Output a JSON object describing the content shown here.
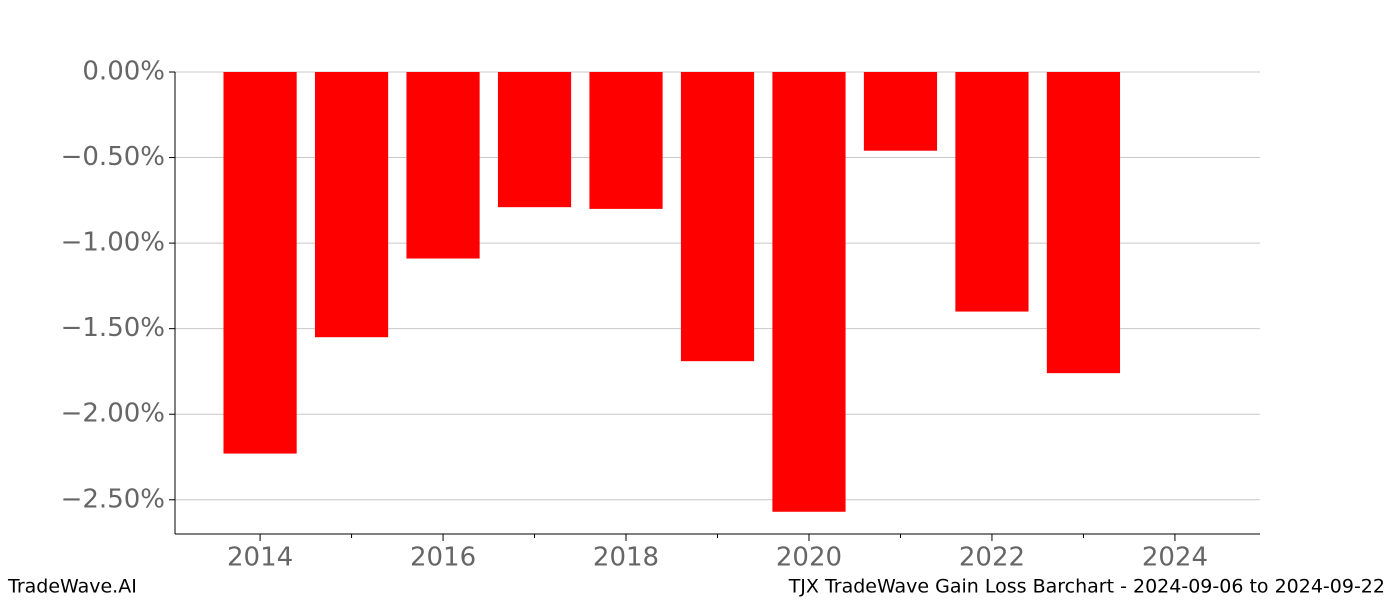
{
  "chart_data": {
    "type": "bar",
    "title": "TJX TradeWave Gain Loss Barchart - 2024-09-06 to 2024-09-22",
    "watermark": "TradeWave.AI",
    "x": [
      2014,
      2015,
      2016,
      2017,
      2018,
      2019,
      2020,
      2021,
      2022,
      2023
    ],
    "values": [
      -2.23,
      -1.55,
      -1.09,
      -0.79,
      -0.8,
      -1.69,
      -2.57,
      -0.46,
      -1.4,
      -1.76
    ],
    "color": "#ff0000",
    "bar_width": 0.8,
    "xlim": [
      2013.07,
      2024.93
    ],
    "xticks": [
      2014,
      2016,
      2018,
      2020,
      2022,
      2024
    ],
    "xminorticks": [
      2015,
      2017,
      2019,
      2021,
      2023
    ],
    "ylim": [
      -2.7,
      0
    ],
    "yticks": [
      {
        "value": 0,
        "label": "0.00%"
      },
      {
        "value": -0.5,
        "label": "−0.50%"
      },
      {
        "value": -1.0,
        "label": "−1.00%"
      },
      {
        "value": -1.5,
        "label": "−1.50%"
      },
      {
        "value": -2.0,
        "label": "−2.00%"
      },
      {
        "value": -2.5,
        "label": "−2.50%"
      }
    ],
    "grid": true
  }
}
